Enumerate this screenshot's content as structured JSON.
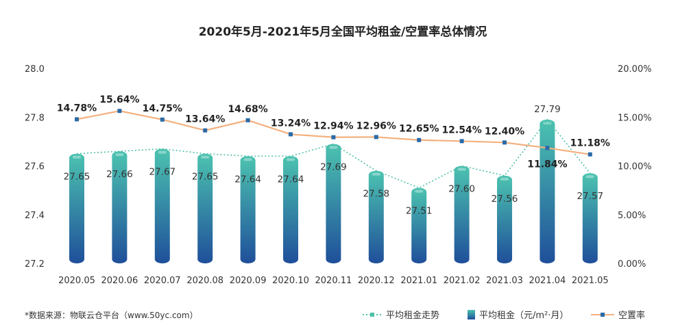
{
  "chart_data": {
    "type": "bar",
    "title": "2020年5月-2021年5月全国平均租金/空置率总体情况",
    "categories": [
      "2020.05",
      "2020.06",
      "2020.07",
      "2020.08",
      "2020.09",
      "2020.10",
      "2020.11",
      "2020.12",
      "2021.01",
      "2021.02",
      "2021.03",
      "2021.04",
      "2021.05"
    ],
    "series": [
      {
        "name": "平均租金（元/m²·月）",
        "type": "bar",
        "axis": "left",
        "values": [
          27.65,
          27.66,
          27.67,
          27.65,
          27.64,
          27.64,
          27.69,
          27.58,
          27.51,
          27.6,
          27.56,
          27.79,
          27.57
        ],
        "labels": [
          "27.65",
          "27.66",
          "27.67",
          "27.65",
          "27.64",
          "27.64",
          "27.69",
          "27.58",
          "27.51",
          "27.60",
          "27.56",
          "27.79",
          "27.57"
        ]
      },
      {
        "name": "平均租金走势",
        "type": "line-dashed",
        "axis": "left",
        "values": [
          27.65,
          27.66,
          27.67,
          27.65,
          27.64,
          27.64,
          27.69,
          27.58,
          27.51,
          27.6,
          27.56,
          27.79,
          27.57
        ]
      },
      {
        "name": "空置率",
        "type": "line",
        "axis": "right",
        "values": [
          14.78,
          15.64,
          14.75,
          13.64,
          14.68,
          13.24,
          12.94,
          12.96,
          12.65,
          12.54,
          12.4,
          11.84,
          11.18
        ],
        "labels": [
          "14.78%",
          "15.64%",
          "14.75%",
          "13.64%",
          "14.68%",
          "13.24%",
          "12.94%",
          "12.96%",
          "12.65%",
          "12.54%",
          "12.40%",
          "11.84%",
          "11.18%"
        ]
      }
    ],
    "y_left": {
      "ylim": [
        27.2,
        28.0
      ],
      "ticks": [
        "28.0",
        "27.8",
        "27.6",
        "27.4",
        "27.2"
      ]
    },
    "y_right": {
      "ylim": [
        0,
        20
      ],
      "ticks": [
        "20.00%",
        "15.00%",
        "10.00%",
        "5.00%",
        "0.00%"
      ]
    },
    "grid": false,
    "legend_position": "bottom-right",
    "legend": [
      "平均租金走势",
      "平均租金（元/m²·月）",
      "空置率"
    ],
    "source_note": "*数据来源：物联云仓平台（www.50yc.com）",
    "colors": {
      "bar_top": "#4cc3b0",
      "bar_bottom": "#1f4f9a",
      "trend_line": "#4cbfa8",
      "rate_line": "#f3b07e",
      "rate_marker": "#2a6aa8"
    }
  }
}
